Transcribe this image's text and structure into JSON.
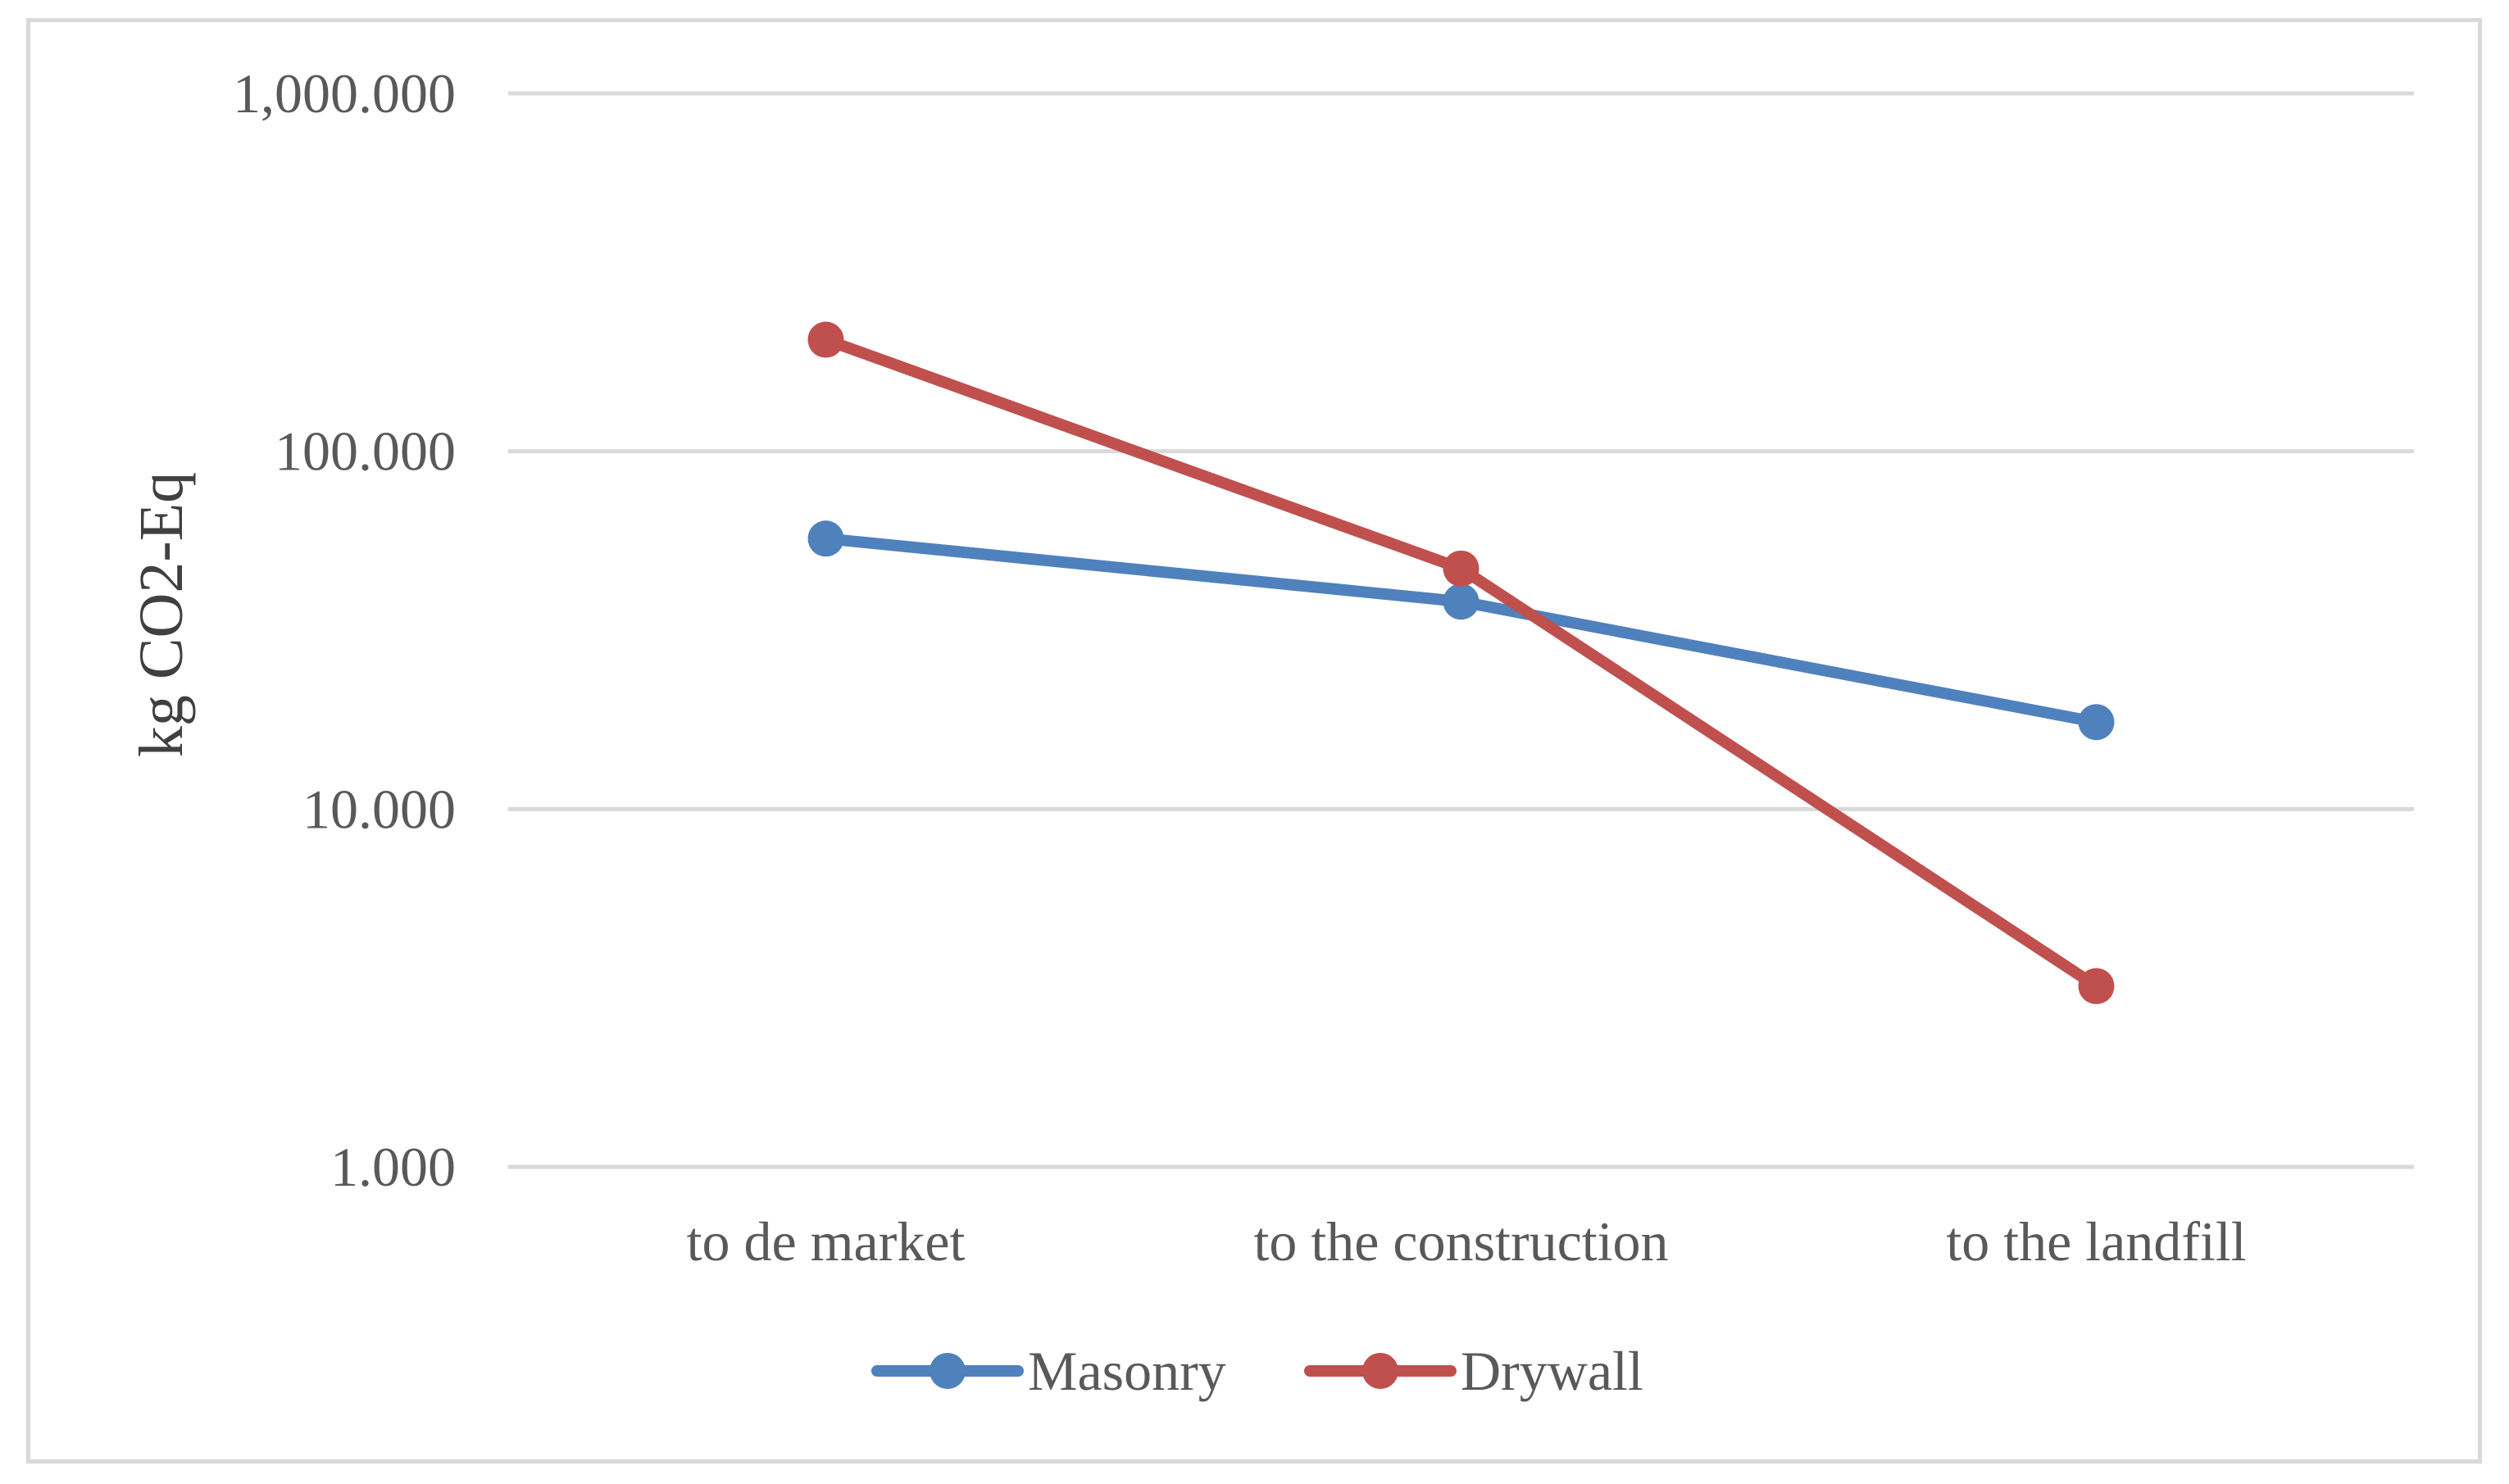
{
  "chart_data": {
    "type": "line",
    "title": "",
    "xlabel": "",
    "ylabel": "kg CO2-Eq",
    "yscale": "log",
    "ylim": [
      1,
      1000
    ],
    "yticks": [
      {
        "value": 1000,
        "label": "1,000.000"
      },
      {
        "value": 100,
        "label": "100.000"
      },
      {
        "value": 10,
        "label": "10.000"
      },
      {
        "value": 1,
        "label": "1.000"
      }
    ],
    "categories": [
      "to de market",
      "to the construction",
      "to the landfill"
    ],
    "grid": true,
    "legend_position": "bottom",
    "series": [
      {
        "name": "Masonry",
        "color": "#4f81bd",
        "values": [
          57,
          38,
          17.5
        ]
      },
      {
        "name": "Drywall",
        "color": "#c0504d",
        "values": [
          205,
          47,
          3.2
        ]
      }
    ]
  }
}
